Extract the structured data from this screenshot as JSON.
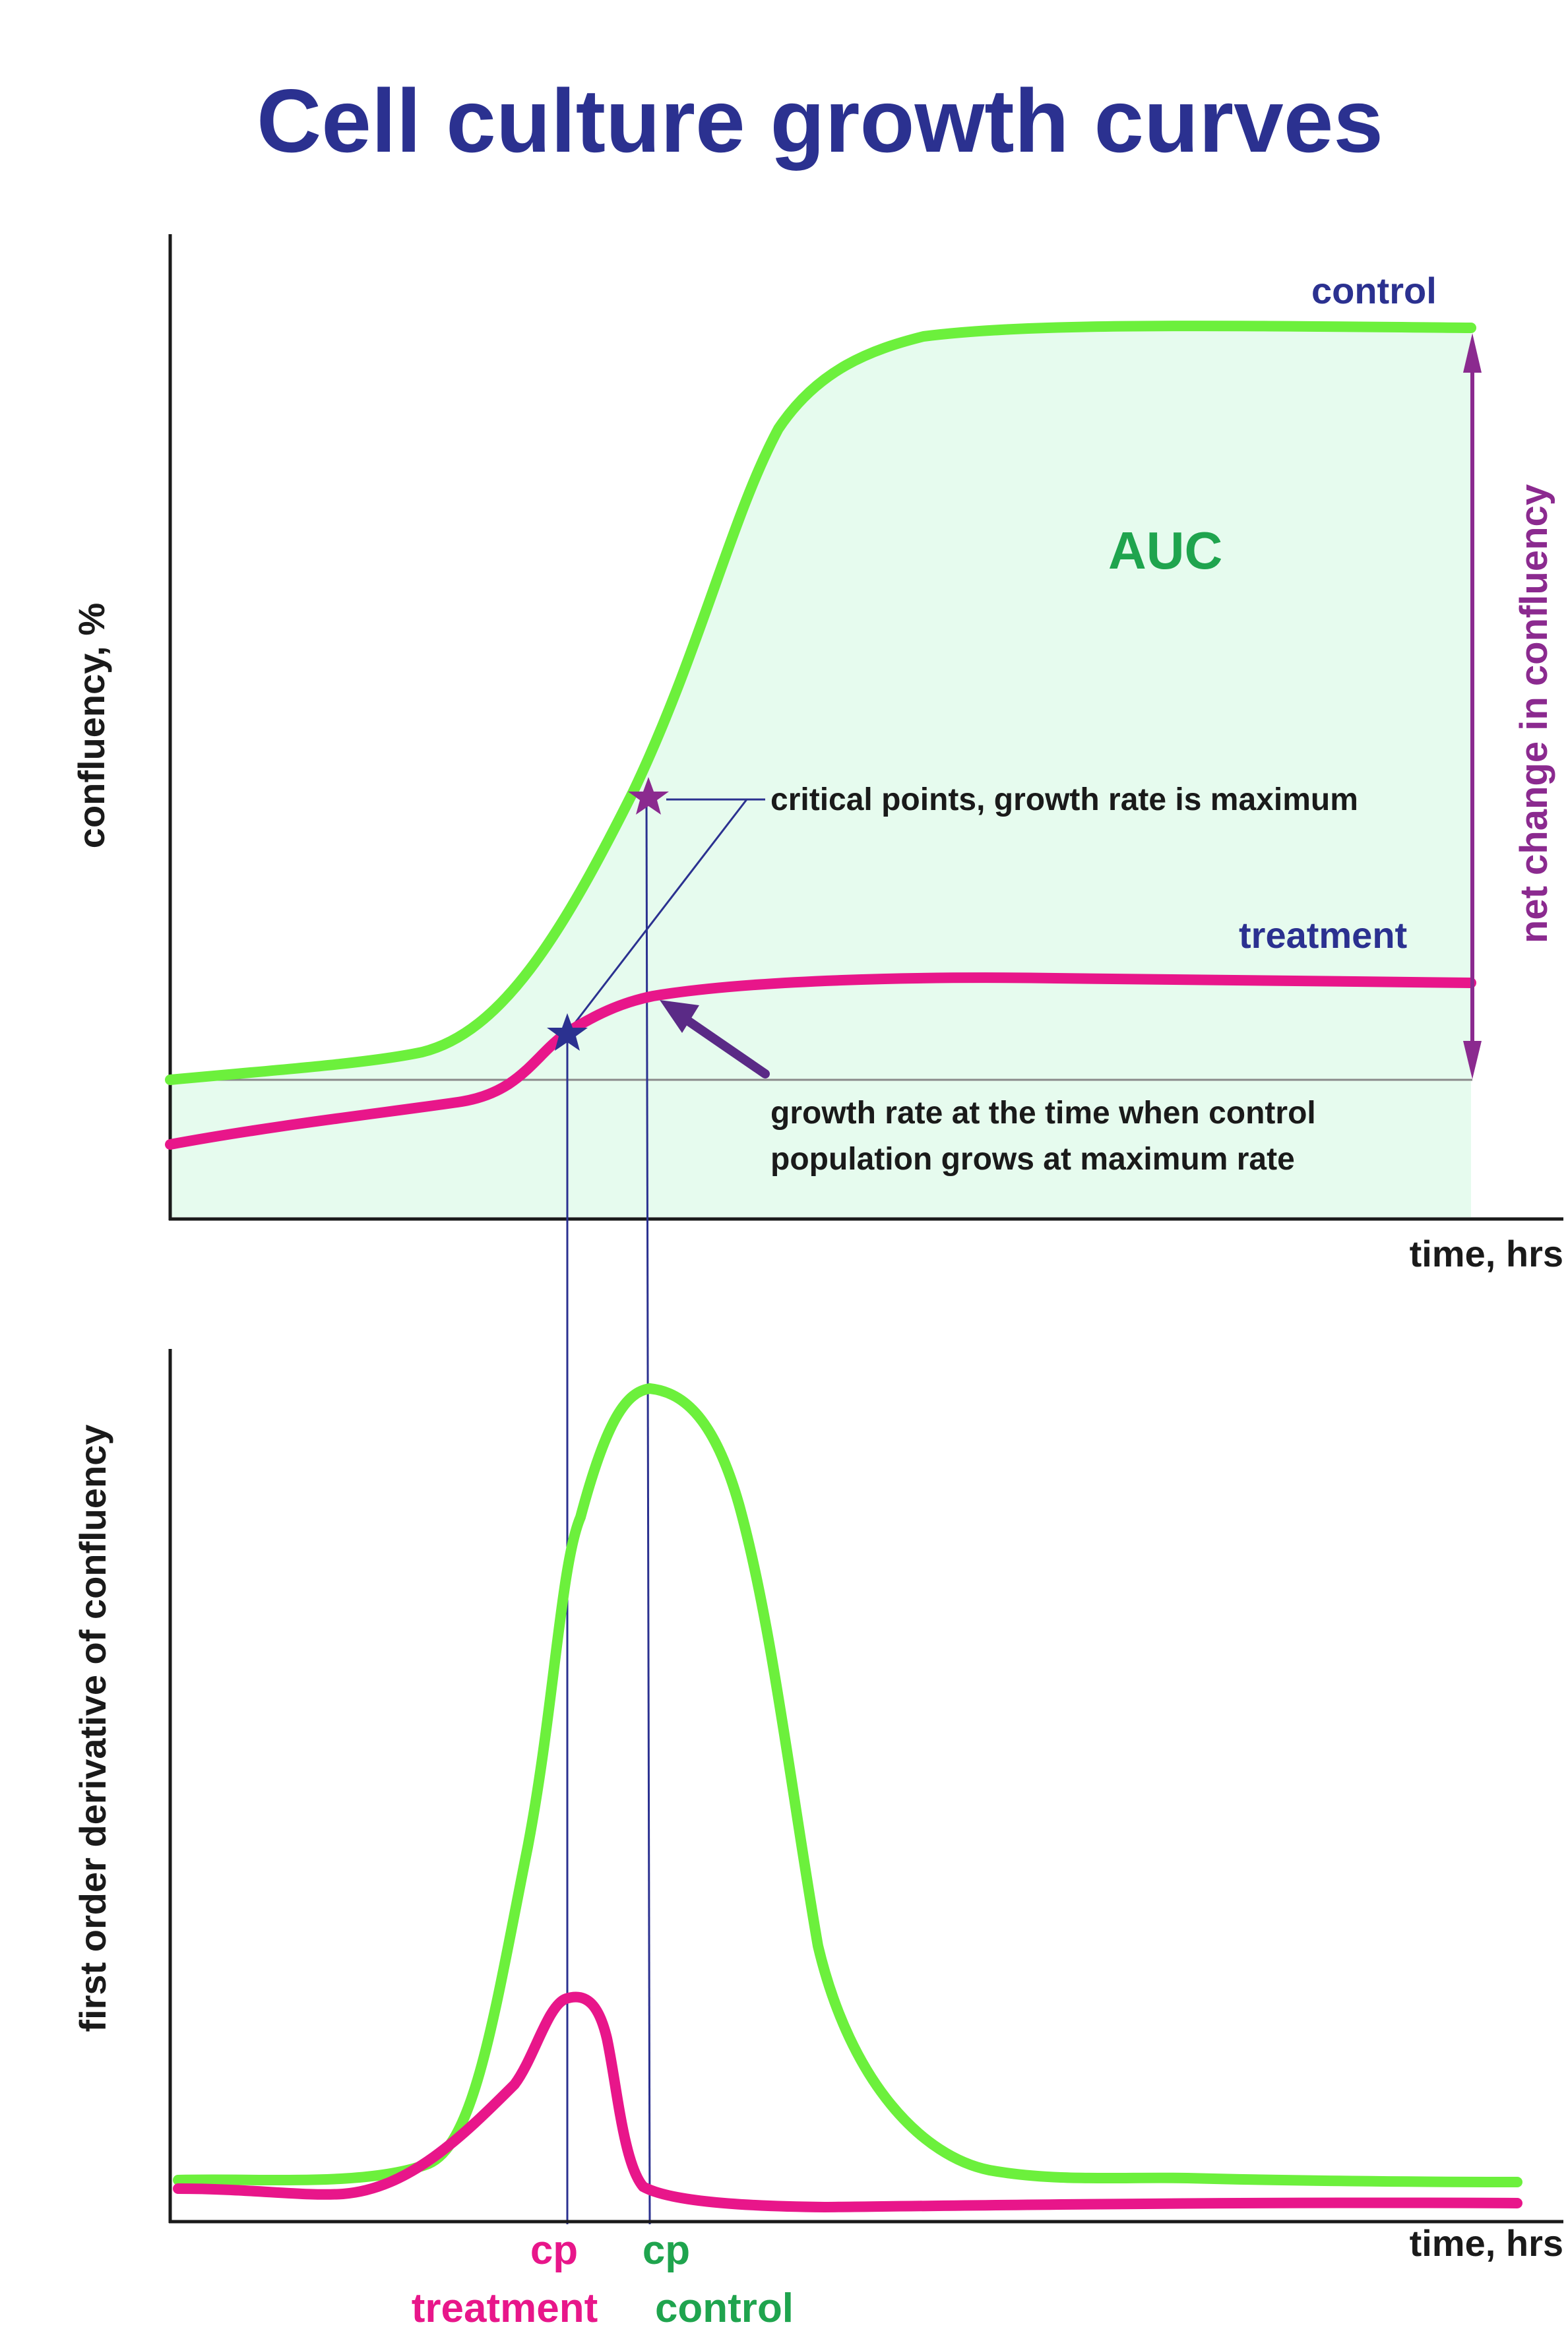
{
  "title": "Cell culture growth curves",
  "top_panel": {
    "ylabel": "confluency, %",
    "xlabel": "time, hrs",
    "series": [
      {
        "name": "control",
        "color": "#6cf03c"
      },
      {
        "name": "treatment",
        "color": "#e8168a"
      }
    ],
    "auc_label": "AUC",
    "net_change_label": "net change in confluency",
    "critical_points_note": "critical points, growth rate is maximum",
    "growth_rate_note_line1": "growth rate at the time when control",
    "growth_rate_note_line2": "population grows at maximum rate"
  },
  "bottom_panel": {
    "ylabel": "first order derivative of confluency",
    "xlabel": "time, hrs",
    "cp_treatment_label": "cp",
    "cp_treatment_sub": "treatment",
    "cp_control_label": "cp",
    "cp_control_sub": "control"
  },
  "colors": {
    "title": "#2b3190",
    "control": "#6cf03c",
    "treatment": "#e8168a",
    "auc_fill": "#e6fbee",
    "auc_text": "#1fa44e",
    "net_change": "#8b2a8f",
    "arrow": "#5a2a86",
    "guide": "#2b3190"
  }
}
